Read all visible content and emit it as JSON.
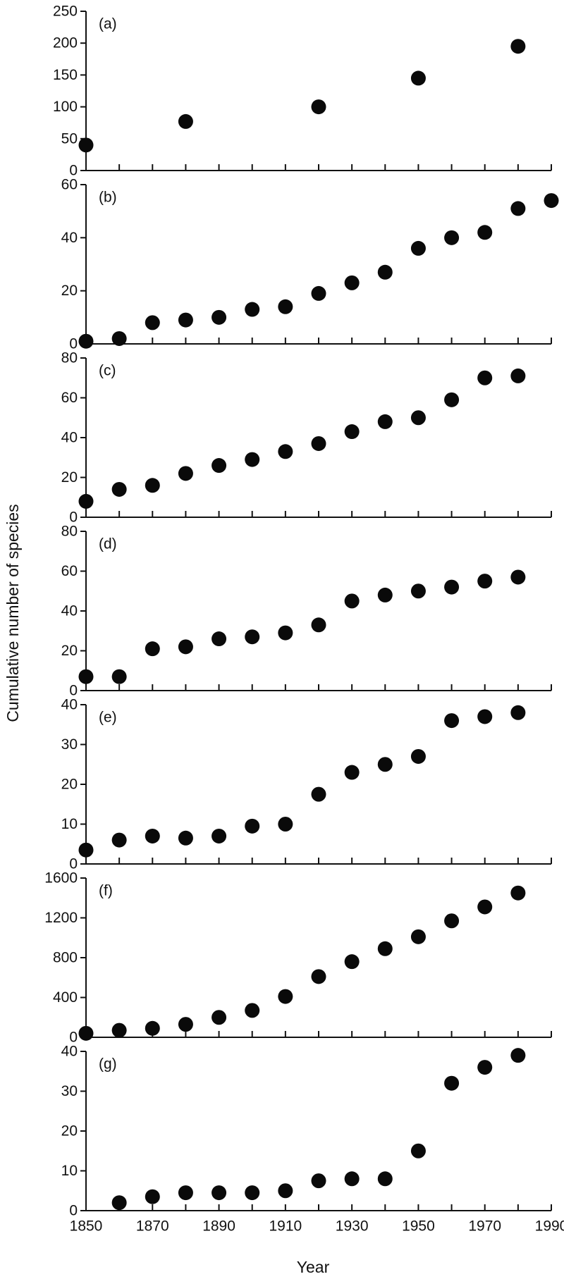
{
  "colors": {
    "marker": "#0a0a0a",
    "axis": "#111111",
    "background": "#ffffff"
  },
  "axis_titles": {
    "x": "Year",
    "y": "Cumulative number of species"
  },
  "chart_data": [
    {
      "type": "scatter",
      "label": "(a)",
      "ylim": [
        0,
        250
      ],
      "yticks": [
        "0",
        "50",
        "100",
        "150",
        "200",
        "250"
      ],
      "x": [
        1850,
        1880,
        1920,
        1950,
        1980
      ],
      "y": [
        40,
        77,
        100,
        145,
        195
      ]
    },
    {
      "type": "scatter",
      "label": "(b)",
      "ylim": [
        0,
        60
      ],
      "yticks": [
        "0",
        "20",
        "40",
        "60"
      ],
      "x": [
        1850,
        1860,
        1870,
        1880,
        1890,
        1900,
        1910,
        1920,
        1930,
        1940,
        1950,
        1960,
        1970,
        1980,
        1990
      ],
      "y": [
        1,
        2,
        8,
        9,
        10,
        13,
        14,
        19,
        23,
        27,
        36,
        40,
        42,
        51,
        54
      ]
    },
    {
      "type": "scatter",
      "label": "(c)",
      "ylim": [
        0,
        80
      ],
      "yticks": [
        "0",
        "20",
        "40",
        "60",
        "80"
      ],
      "x": [
        1850,
        1860,
        1870,
        1880,
        1890,
        1900,
        1910,
        1920,
        1930,
        1940,
        1950,
        1960,
        1970,
        1980
      ],
      "y": [
        8,
        14,
        16,
        22,
        26,
        29,
        33,
        37,
        43,
        48,
        50,
        59,
        70,
        71
      ]
    },
    {
      "type": "scatter",
      "label": "(d)",
      "ylim": [
        0,
        80
      ],
      "yticks": [
        "0",
        "20",
        "40",
        "60",
        "80"
      ],
      "x": [
        1850,
        1860,
        1870,
        1880,
        1890,
        1900,
        1910,
        1920,
        1930,
        1940,
        1950,
        1960,
        1970,
        1980
      ],
      "y": [
        7,
        7,
        21,
        22,
        26,
        27,
        29,
        33,
        45,
        48,
        50,
        52,
        55,
        57
      ]
    },
    {
      "type": "scatter",
      "label": "(e)",
      "ylim": [
        0,
        40
      ],
      "yticks": [
        "0",
        "10",
        "20",
        "30",
        "40"
      ],
      "x": [
        1850,
        1860,
        1870,
        1880,
        1890,
        1900,
        1910,
        1920,
        1930,
        1940,
        1950,
        1960,
        1970,
        1980
      ],
      "y": [
        3.5,
        6,
        7,
        6.5,
        7,
        9.5,
        10,
        17.5,
        23,
        25,
        27,
        36,
        37,
        38
      ]
    },
    {
      "type": "scatter",
      "label": "(f)",
      "ylim": [
        0,
        1600
      ],
      "yticks": [
        "0",
        "400",
        "800",
        "1200",
        "1600"
      ],
      "x": [
        1850,
        1860,
        1870,
        1880,
        1890,
        1900,
        1910,
        1920,
        1930,
        1940,
        1950,
        1960,
        1970,
        1980
      ],
      "y": [
        40,
        70,
        90,
        130,
        200,
        270,
        410,
        610,
        760,
        890,
        1010,
        1170,
        1310,
        1450
      ]
    },
    {
      "type": "scatter",
      "label": "(g)",
      "ylim": [
        0,
        40
      ],
      "yticks": [
        "0",
        "10",
        "20",
        "30",
        "40"
      ],
      "x": [
        1860,
        1870,
        1880,
        1890,
        1900,
        1910,
        1920,
        1930,
        1940,
        1950,
        1960,
        1970,
        1980
      ],
      "y": [
        2,
        3.5,
        4.5,
        4.5,
        4.5,
        5,
        7.5,
        8,
        8,
        15,
        32,
        36,
        39
      ],
      "xlim": [
        1850,
        1990
      ],
      "xticks": [
        "1850",
        "1870",
        "1890",
        "1910",
        "1930",
        "1950",
        "1970",
        "1990"
      ]
    }
  ]
}
